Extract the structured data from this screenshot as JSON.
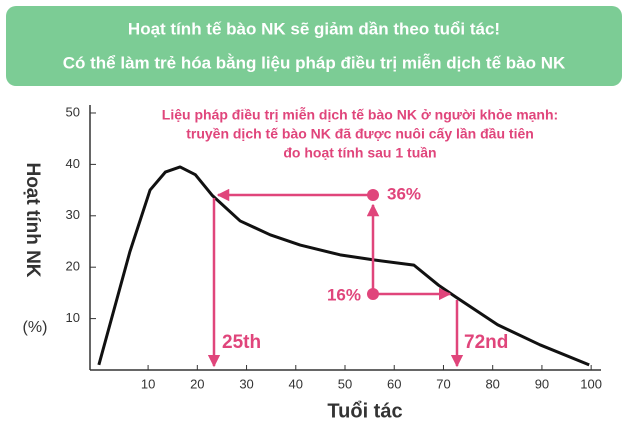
{
  "chart_data": {
    "type": "line",
    "header": [
      "Hoạt tính tế bào NK sẽ giảm dần theo tuổi tác!",
      "Có thể làm trẻ hóa bằng liệu pháp điều trị miễn dịch tế bào NK"
    ],
    "note": [
      "Liệu pháp điều trị miễn dịch tế bào NK ở người khỏe mạnh:",
      "truyền dịch tế bào NK đã được nuôi cấy lần đầu tiên",
      "đo hoạt tính sau 1 tuần"
    ],
    "ylabel": "Hoạt tính NK",
    "yunit": "(%)",
    "xlabel": "Tuổi tác",
    "annotations": [
      "36%",
      "16%",
      "25th",
      "72nd"
    ],
    "x": [
      0,
      6.3,
      10.4,
      13.5,
      16.5,
      19.6,
      23,
      28.7,
      34.8,
      40.9,
      49,
      56,
      64,
      69,
      72.5,
      81,
      89.6,
      99.6
    ],
    "values": [
      1,
      23,
      35,
      38.5,
      39.5,
      38,
      34,
      29,
      26.3,
      24.3,
      22.4,
      21.4,
      20.4,
      16.5,
      14.2,
      8.8,
      4.9,
      1
    ],
    "color": "#111111",
    "xlim": [
      -1.8,
      102
    ],
    "xticks": [
      10,
      20,
      30,
      40,
      50,
      60,
      70,
      80,
      90,
      100
    ],
    "ylim": [
      0,
      52
    ],
    "yticks": [
      10,
      20,
      30,
      40,
      50
    ]
  }
}
